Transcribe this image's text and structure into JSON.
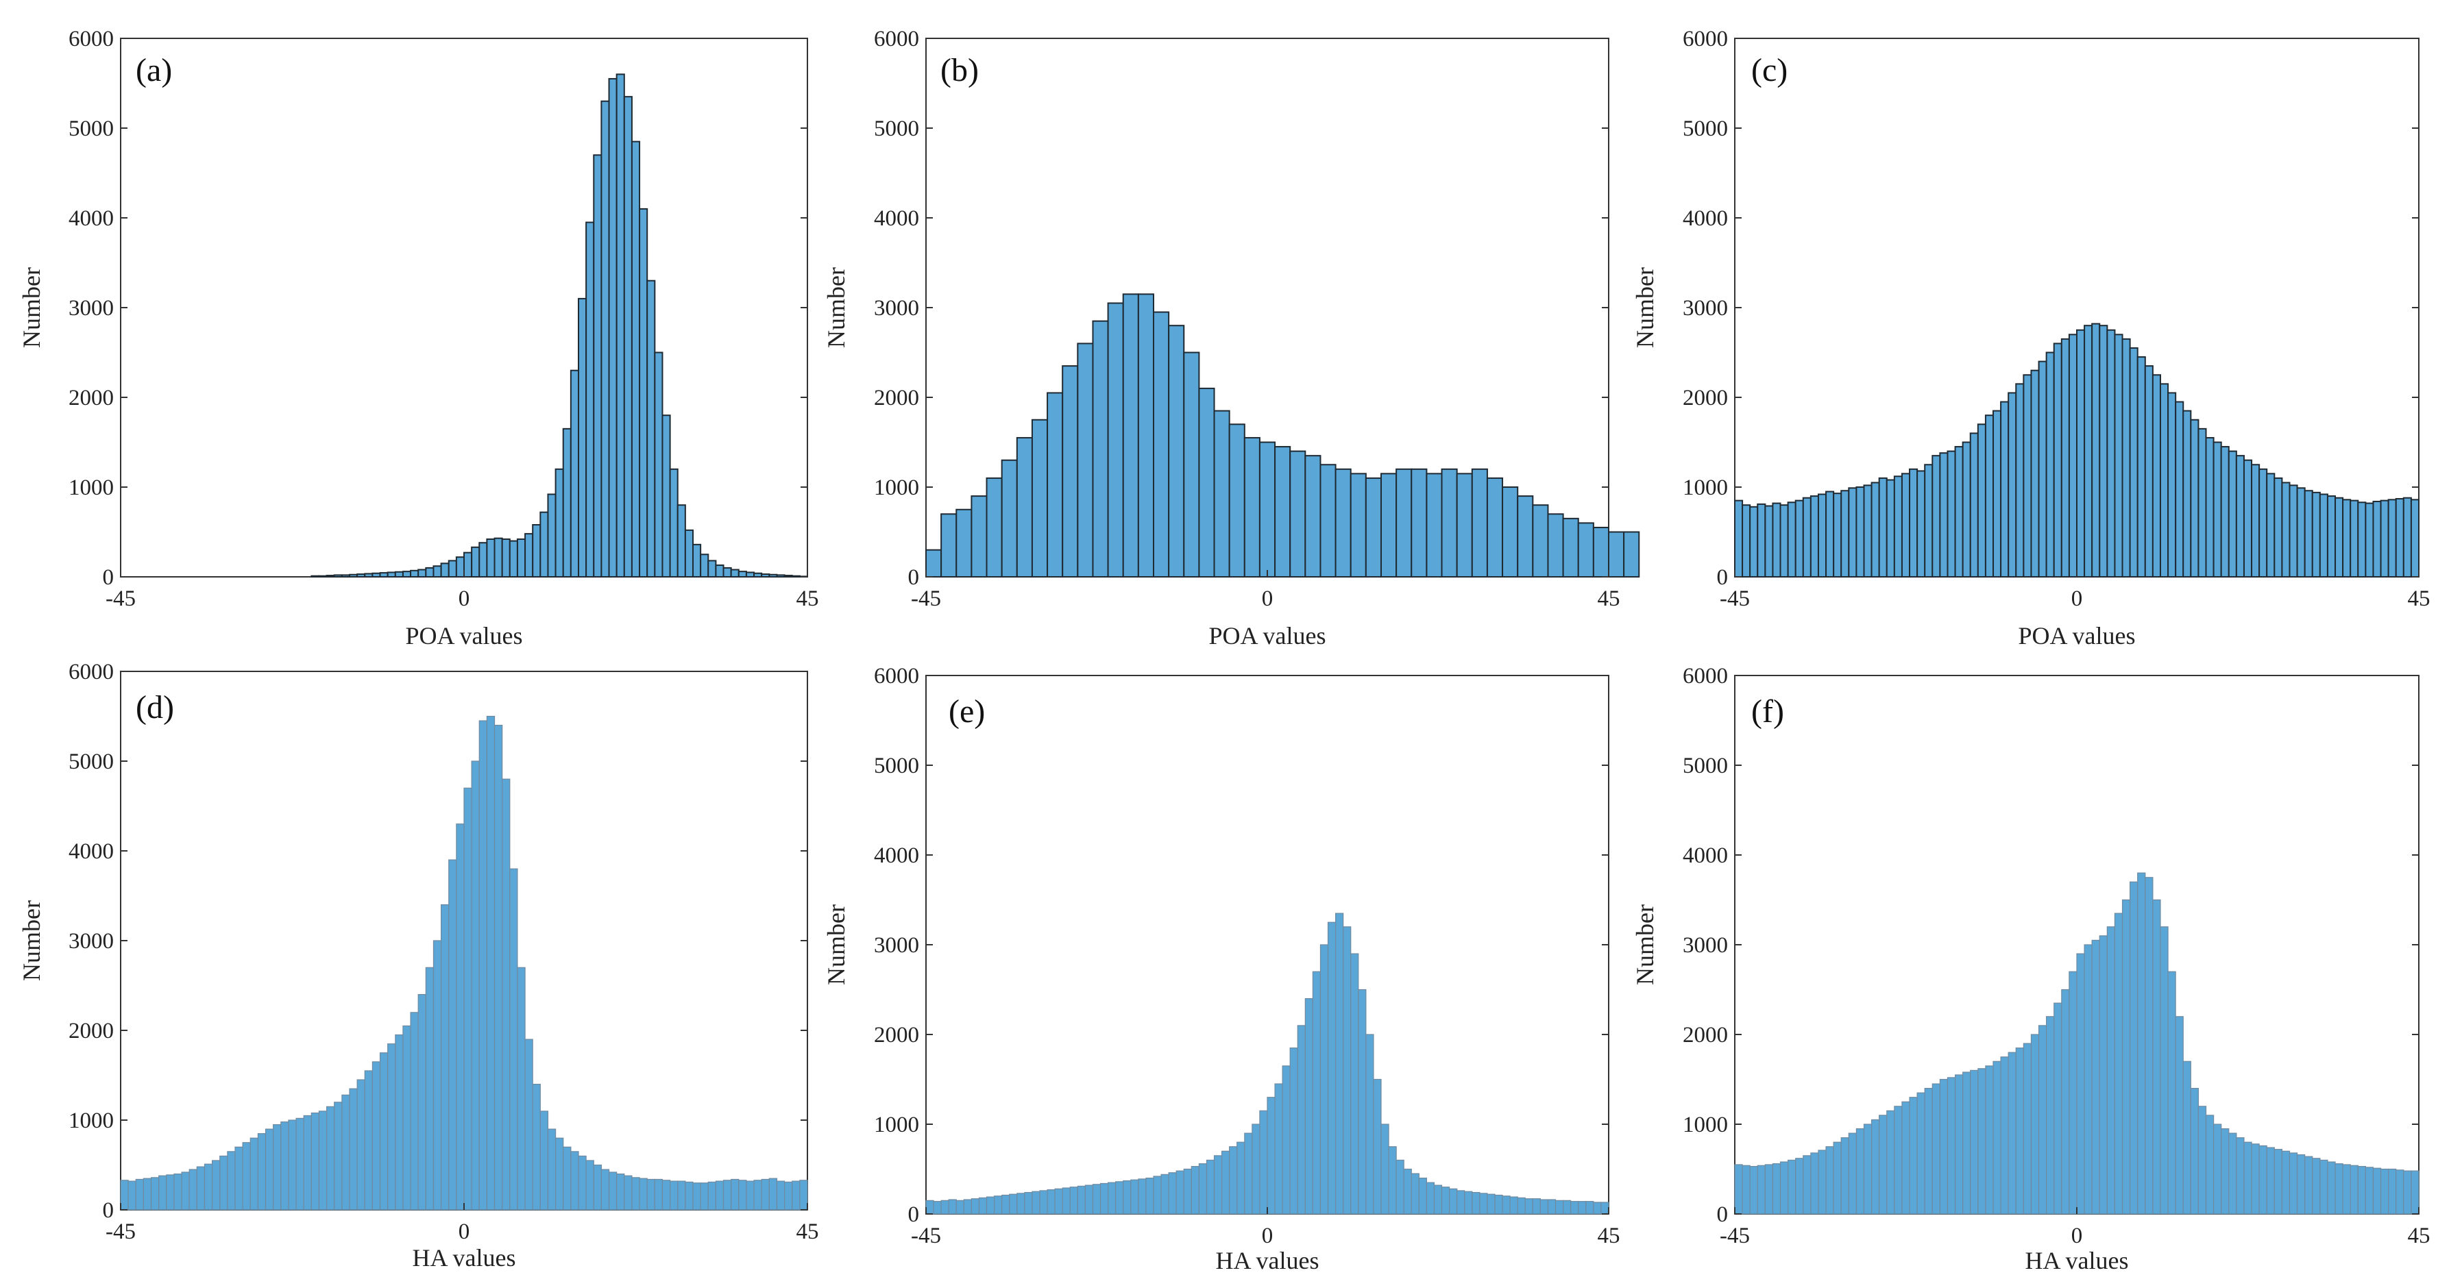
{
  "figure": {
    "bar_color": "#5aa6d6",
    "edge_dark": "#1f2a33",
    "edge_light": "#6f8aa0"
  },
  "chart_data": [
    {
      "id": "a",
      "type": "bar",
      "panel_label": "(a)",
      "xlabel": "POA values",
      "ylabel": "Number",
      "xlim": [
        -45,
        45
      ],
      "ylim": [
        0,
        6000
      ],
      "xticks": [
        "-45",
        "0",
        "45"
      ],
      "yticks": [
        "0",
        "1000",
        "2000",
        "3000",
        "4000",
        "5000",
        "6000"
      ],
      "x_start": -45,
      "bin_width": 1,
      "values": [
        0,
        0,
        0,
        0,
        0,
        0,
        0,
        0,
        0,
        0,
        0,
        0,
        0,
        0,
        0,
        0,
        0,
        0,
        0,
        0,
        0,
        0,
        0,
        0,
        0,
        10,
        10,
        15,
        20,
        20,
        25,
        30,
        35,
        40,
        45,
        50,
        55,
        60,
        70,
        80,
        100,
        120,
        150,
        180,
        220,
        270,
        330,
        380,
        420,
        430,
        420,
        400,
        420,
        480,
        580,
        720,
        920,
        1200,
        1650,
        2300,
        3100,
        3950,
        4700,
        5300,
        5550,
        5600,
        5350,
        4850,
        4100,
        3300,
        2500,
        1800,
        1200,
        800,
        520,
        360,
        250,
        180,
        130,
        100,
        80,
        60,
        50,
        40,
        30,
        25,
        20,
        15,
        10,
        5
      ]
    },
    {
      "id": "b",
      "type": "bar",
      "panel_label": "(b)",
      "xlabel": "POA values",
      "ylabel": "Number",
      "xlim": [
        -45,
        45
      ],
      "ylim": [
        0,
        6000
      ],
      "xticks": [
        "-45",
        "0",
        "45"
      ],
      "yticks": [
        "0",
        "1000",
        "2000",
        "3000",
        "4000",
        "5000",
        "6000"
      ],
      "x_start": -45,
      "bin_width": 2,
      "values": [
        300,
        700,
        750,
        900,
        1100,
        1300,
        1550,
        1750,
        2050,
        2350,
        2600,
        2850,
        3050,
        3150,
        3150,
        2950,
        2800,
        2500,
        2100,
        1850,
        1700,
        1550,
        1500,
        1450,
        1400,
        1350,
        1250,
        1200,
        1150,
        1100,
        1150,
        1200,
        1200,
        1150,
        1200,
        1150,
        1200,
        1100,
        1000,
        900,
        800,
        700,
        650,
        600,
        550,
        500,
        500
      ]
    },
    {
      "id": "c",
      "type": "bar",
      "panel_label": "(c)",
      "xlabel": "POA values",
      "ylabel": "Number",
      "xlim": [
        -45,
        45
      ],
      "ylim": [
        0,
        6000
      ],
      "xticks": [
        "-45",
        "0",
        "45"
      ],
      "yticks": [
        "0",
        "1000",
        "2000",
        "3000",
        "4000",
        "5000",
        "6000"
      ],
      "x_start": -45,
      "bin_width": 1,
      "values": [
        850,
        800,
        780,
        810,
        790,
        820,
        800,
        830,
        850,
        880,
        900,
        920,
        950,
        930,
        960,
        990,
        1000,
        1020,
        1050,
        1100,
        1080,
        1120,
        1150,
        1200,
        1180,
        1250,
        1350,
        1380,
        1400,
        1450,
        1500,
        1600,
        1700,
        1800,
        1850,
        1950,
        2050,
        2150,
        2250,
        2300,
        2400,
        2500,
        2600,
        2650,
        2700,
        2750,
        2800,
        2820,
        2800,
        2750,
        2700,
        2650,
        2550,
        2450,
        2350,
        2250,
        2150,
        2050,
        1950,
        1850,
        1750,
        1650,
        1550,
        1500,
        1450,
        1400,
        1350,
        1300,
        1250,
        1200,
        1150,
        1100,
        1050,
        1020,
        990,
        960,
        940,
        920,
        900,
        880,
        860,
        850,
        830,
        820,
        840,
        850,
        860,
        870,
        880,
        860
      ]
    },
    {
      "id": "d",
      "type": "bar",
      "panel_label": "(d)",
      "xlabel": "HA values",
      "ylabel": "Number",
      "xlim": [
        -45,
        45
      ],
      "ylim": [
        0,
        6000
      ],
      "xticks": [
        "-45",
        "0",
        "45"
      ],
      "yticks": [
        "0",
        "1000",
        "2000",
        "3000",
        "4000",
        "5000",
        "6000"
      ],
      "x_start": -45,
      "bin_width": 1,
      "values": [
        330,
        320,
        340,
        350,
        360,
        380,
        390,
        400,
        420,
        450,
        480,
        510,
        550,
        600,
        650,
        700,
        750,
        800,
        850,
        900,
        950,
        980,
        1000,
        1020,
        1050,
        1080,
        1100,
        1150,
        1200,
        1280,
        1350,
        1450,
        1550,
        1650,
        1750,
        1850,
        1950,
        2050,
        2200,
        2400,
        2700,
        3000,
        3400,
        3900,
        4300,
        4700,
        5000,
        5450,
        5500,
        5400,
        4800,
        3800,
        2700,
        1900,
        1400,
        1100,
        900,
        800,
        700,
        650,
        600,
        550,
        500,
        450,
        420,
        400,
        380,
        360,
        350,
        340,
        340,
        330,
        320,
        320,
        310,
        300,
        300,
        310,
        320,
        330,
        340,
        330,
        320,
        330,
        340,
        350,
        320,
        310,
        320,
        330
      ]
    },
    {
      "id": "e",
      "type": "bar",
      "panel_label": "(e)",
      "xlabel": "HA values",
      "ylabel": "Number",
      "xlim": [
        -45,
        45
      ],
      "ylim": [
        0,
        6000
      ],
      "xticks": [
        "-45",
        "0",
        "45"
      ],
      "yticks": [
        "0",
        "1000",
        "2000",
        "3000",
        "4000",
        "5000",
        "6000"
      ],
      "x_start": -45,
      "bin_width": 1,
      "values": [
        150,
        140,
        150,
        160,
        150,
        160,
        170,
        180,
        190,
        200,
        210,
        220,
        230,
        240,
        250,
        260,
        270,
        280,
        290,
        300,
        310,
        320,
        330,
        340,
        350,
        360,
        370,
        380,
        390,
        400,
        420,
        440,
        460,
        480,
        500,
        530,
        560,
        600,
        650,
        700,
        750,
        800,
        900,
        1000,
        1150,
        1300,
        1450,
        1650,
        1850,
        2100,
        2400,
        2700,
        3000,
        3250,
        3350,
        3200,
        2900,
        2500,
        2000,
        1500,
        1000,
        750,
        600,
        500,
        450,
        400,
        350,
        320,
        300,
        280,
        260,
        250,
        240,
        230,
        220,
        210,
        200,
        190,
        180,
        170,
        170,
        160,
        160,
        150,
        150,
        140,
        140,
        140,
        130,
        130
      ]
    },
    {
      "id": "f",
      "type": "bar",
      "panel_label": "(f)",
      "xlabel": "HA values",
      "ylabel": "Number",
      "xlim": [
        -45,
        45
      ],
      "ylim": [
        0,
        6000
      ],
      "xticks": [
        "-45",
        "0",
        "45"
      ],
      "yticks": [
        "0",
        "1000",
        "2000",
        "3000",
        "4000",
        "5000",
        "6000"
      ],
      "x_start": -45,
      "bin_width": 1,
      "values": [
        550,
        540,
        530,
        540,
        550,
        560,
        580,
        600,
        620,
        650,
        680,
        710,
        750,
        800,
        850,
        900,
        950,
        1000,
        1050,
        1100,
        1150,
        1200,
        1250,
        1300,
        1350,
        1400,
        1450,
        1500,
        1520,
        1550,
        1580,
        1600,
        1620,
        1650,
        1700,
        1750,
        1800,
        1850,
        1900,
        2000,
        2100,
        2200,
        2350,
        2500,
        2700,
        2900,
        3000,
        3050,
        3100,
        3200,
        3350,
        3500,
        3700,
        3800,
        3750,
        3500,
        3200,
        2700,
        2200,
        1700,
        1400,
        1200,
        1100,
        1000,
        950,
        900,
        850,
        800,
        780,
        760,
        740,
        720,
        700,
        680,
        660,
        640,
        620,
        600,
        580,
        560,
        550,
        540,
        530,
        520,
        510,
        500,
        500,
        490,
        480,
        480
      ]
    }
  ]
}
